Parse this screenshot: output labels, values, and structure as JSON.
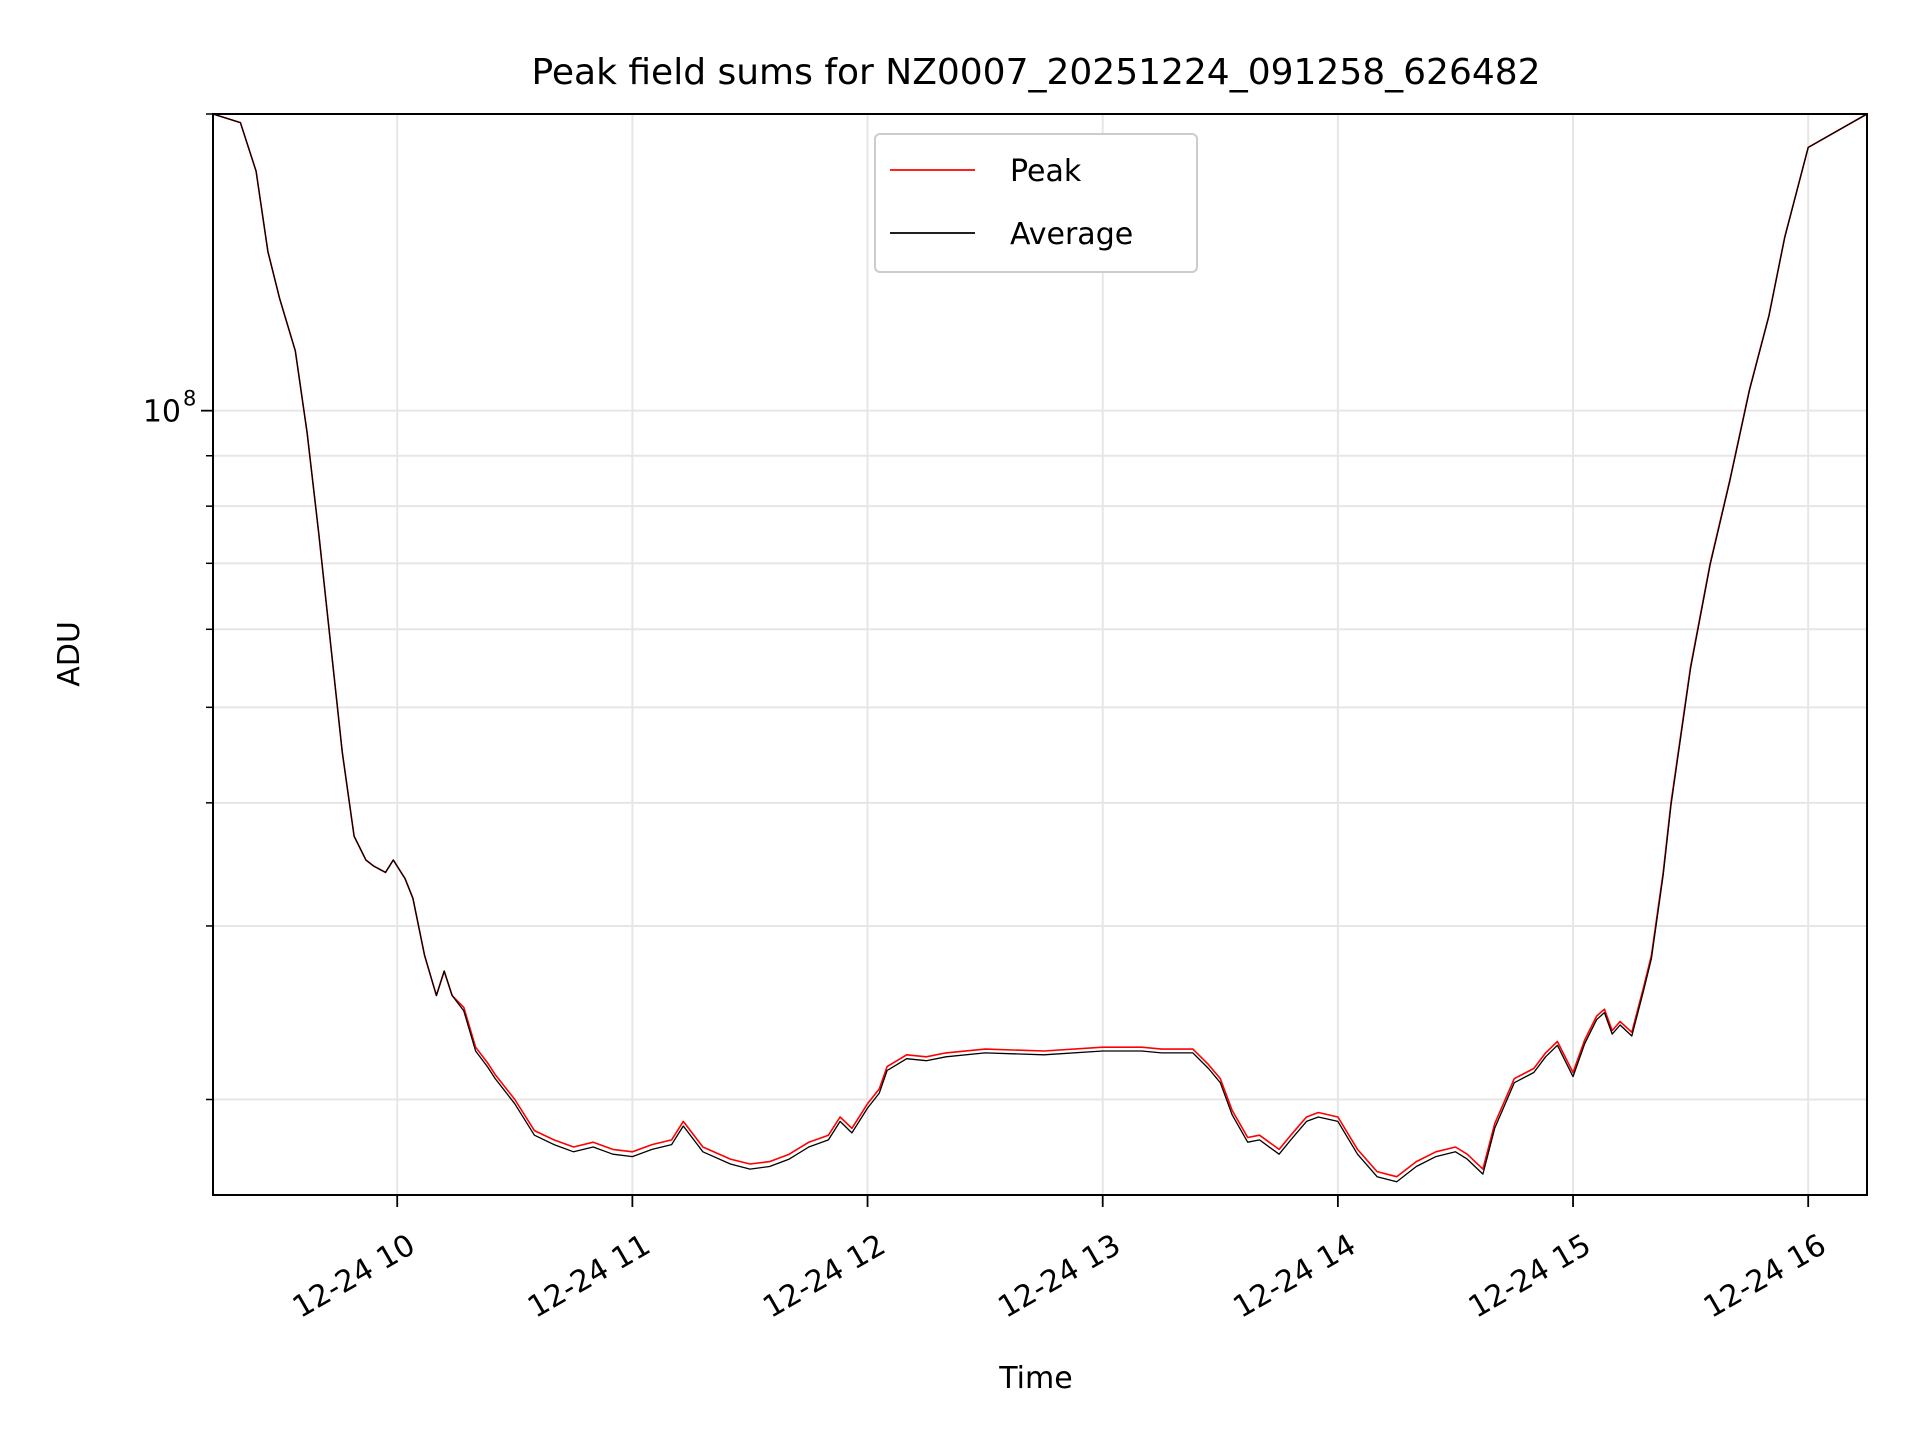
{
  "chart_data": {
    "type": "line",
    "title": "Peak field sums for NZ0007_20251224_091258_626482",
    "xlabel": "Time",
    "ylabel": "ADU",
    "yscale": "log",
    "grid": true,
    "legend_position": "top-center",
    "xlim": [
      "12-24 09:13",
      "12-24 16:15"
    ],
    "ylim": [
      16000000,
      200000000
    ],
    "x_ticks": [
      "12-24 10",
      "12-24 11",
      "12-24 12",
      "12-24 13",
      "12-24 14",
      "12-24 15",
      "12-24 16"
    ],
    "y_ticks": [
      {
        "base": "10",
        "exponent": "8"
      }
    ],
    "x": [
      "12-24 09:13",
      "12-24 09:20",
      "12-24 09:24",
      "12-24 09:27",
      "12-24 09:30",
      "12-24 09:34",
      "12-24 09:37",
      "12-24 09:40",
      "12-24 09:43",
      "12-24 09:46",
      "12-24 09:49",
      "12-24 09:52",
      "12-24 09:54",
      "12-24 09:57",
      "12-24 09:59",
      "12-24 10:02",
      "12-24 10:04",
      "12-24 10:07",
      "12-24 10:10",
      "12-24 10:12",
      "12-24 10:14",
      "12-24 10:17",
      "12-24 10:20",
      "12-24 10:23",
      "12-24 10:25",
      "12-24 10:30",
      "12-24 10:35",
      "12-24 10:40",
      "12-24 10:45",
      "12-24 10:50",
      "12-24 10:55",
      "12-24 11:00",
      "12-24 11:05",
      "12-24 11:10",
      "12-24 11:13",
      "12-24 11:18",
      "12-24 11:25",
      "12-24 11:30",
      "12-24 11:35",
      "12-24 11:40",
      "12-24 11:45",
      "12-24 11:50",
      "12-24 11:53",
      "12-24 11:56",
      "12-24 12:00",
      "12-24 12:03",
      "12-24 12:05",
      "12-24 12:10",
      "12-24 12:15",
      "12-24 12:20",
      "12-24 12:30",
      "12-24 12:45",
      "12-24 13:00",
      "12-24 13:10",
      "12-24 13:15",
      "12-24 13:20",
      "12-24 13:23",
      "12-24 13:27",
      "12-24 13:30",
      "12-24 13:33",
      "12-24 13:37",
      "12-24 13:40",
      "12-24 13:45",
      "12-24 13:48",
      "12-24 13:52",
      "12-24 13:55",
      "12-24 14:00",
      "12-24 14:05",
      "12-24 14:10",
      "12-24 14:15",
      "12-24 14:20",
      "12-24 14:25",
      "12-24 14:30",
      "12-24 14:33",
      "12-24 14:37",
      "12-24 14:40",
      "12-24 14:45",
      "12-24 14:50",
      "12-24 14:53",
      "12-24 14:56",
      "12-24 15:00",
      "12-24 15:03",
      "12-24 15:06",
      "12-24 15:08",
      "12-24 15:10",
      "12-24 15:12",
      "12-24 15:15",
      "12-24 15:18",
      "12-24 15:20",
      "12-24 15:23",
      "12-24 15:25",
      "12-24 15:30",
      "12-24 15:35",
      "12-24 15:40",
      "12-24 15:45",
      "12-24 15:50",
      "12-24 15:54",
      "12-24 16:00",
      "12-24 16:15"
    ],
    "series": [
      {
        "name": "Peak",
        "color": "#ff0000",
        "values": [
          200000000,
          196000000,
          175000000,
          145000000,
          130000000,
          115000000,
          95000000,
          75000000,
          58000000,
          45000000,
          37000000,
          35000000,
          34500000,
          34000000,
          35000000,
          33500000,
          32000000,
          28000000,
          25500000,
          27000000,
          25500000,
          24800000,
          22600000,
          21800000,
          21200000,
          20000000,
          18600000,
          18200000,
          17900000,
          18100000,
          17800000,
          17700000,
          18000000,
          18200000,
          19000000,
          17900000,
          17400000,
          17200000,
          17300000,
          17600000,
          18100000,
          18400000,
          19200000,
          18700000,
          19800000,
          20500000,
          21600000,
          22200000,
          22100000,
          22300000,
          22500000,
          22400000,
          22600000,
          22600000,
          22500000,
          22500000,
          22500000,
          21700000,
          21000000,
          19500000,
          18300000,
          18400000,
          17800000,
          18400000,
          19200000,
          19400000,
          19200000,
          17800000,
          16900000,
          16700000,
          17300000,
          17700000,
          17900000,
          17600000,
          17000000,
          18900000,
          21000000,
          21500000,
          22300000,
          22900000,
          21300000,
          23000000,
          24300000,
          24700000,
          23500000,
          24000000,
          23400000,
          26000000,
          28000000,
          34000000,
          40000000,
          55000000,
          70000000,
          85000000,
          105000000,
          125000000,
          150000000,
          185000000,
          200000000
        ]
      },
      {
        "name": "Average",
        "color": "#000000",
        "values": [
          200000000,
          196000000,
          175000000,
          145000000,
          130000000,
          115000000,
          95000000,
          75000000,
          58000000,
          45000000,
          37000000,
          35000000,
          34500000,
          34000000,
          35000000,
          33500000,
          32000000,
          28000000,
          25500000,
          27000000,
          25500000,
          24600000,
          22400000,
          21600000,
          21000000,
          19800000,
          18400000,
          18000000,
          17700000,
          17900000,
          17600000,
          17500000,
          17800000,
          18000000,
          18800000,
          17700000,
          17200000,
          17000000,
          17100000,
          17400000,
          17900000,
          18200000,
          19000000,
          18500000,
          19600000,
          20300000,
          21400000,
          22000000,
          21900000,
          22100000,
          22300000,
          22200000,
          22400000,
          22400000,
          22300000,
          22300000,
          22300000,
          21500000,
          20800000,
          19300000,
          18100000,
          18200000,
          17600000,
          18200000,
          19000000,
          19200000,
          19000000,
          17600000,
          16700000,
          16500000,
          17100000,
          17500000,
          17700000,
          17400000,
          16800000,
          18700000,
          20800000,
          21300000,
          22100000,
          22700000,
          21100000,
          22800000,
          24100000,
          24500000,
          23300000,
          23800000,
          23200000,
          25800000,
          27800000,
          33800000,
          39800000,
          54800000,
          69800000,
          84800000,
          104800000,
          124800000,
          149800000,
          185000000,
          200000000
        ]
      }
    ]
  }
}
